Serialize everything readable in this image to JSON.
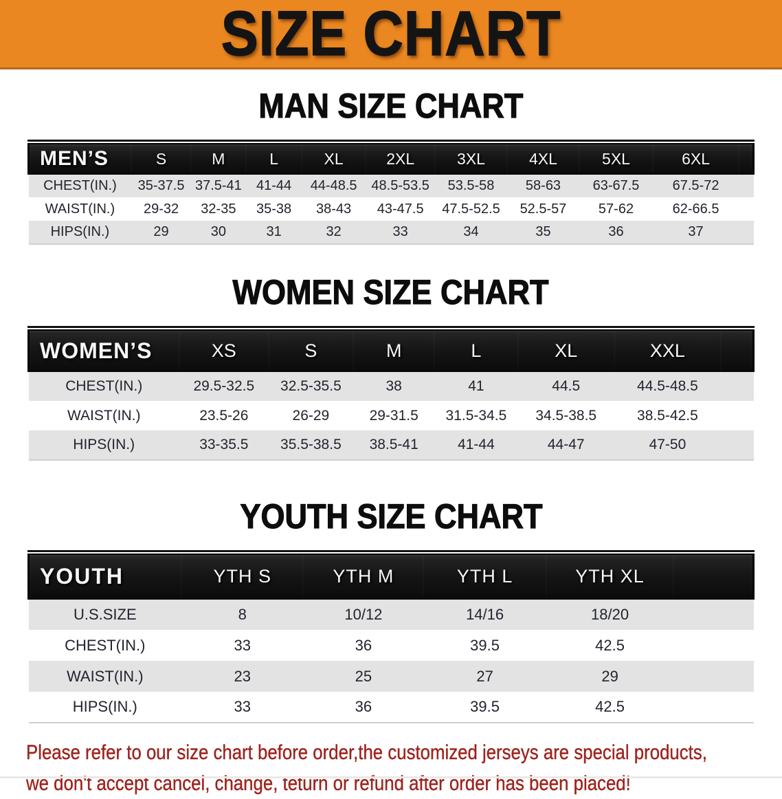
{
  "banner": {
    "title": "SIZE CHART",
    "background_color": "#EA8720",
    "text_color": "#141414"
  },
  "sections": [
    {
      "heading": "MAN SIZE CHART",
      "table": {
        "header": [
          "MEN’S",
          "S",
          "M",
          "L",
          "XL",
          "2XL",
          "3XL",
          "4XL",
          "5XL",
          "6XL"
        ],
        "rows": [
          {
            "label": "CHEST(IN.)",
            "values": [
              "35-37.5",
              "37.5-41",
              "41-44",
              "44-48.5",
              "48.5-53.5",
              "53.5-58",
              "58-63",
              "63-67.5",
              "67.5-72"
            ]
          },
          {
            "label": "WAIST(IN.)",
            "values": [
              "29-32",
              "32-35",
              "35-38",
              "38-43",
              "43-47.5",
              "47.5-52.5",
              "52.5-57",
              "57-62",
              "62-66.5"
            ]
          },
          {
            "label": "HIPS(IN.)",
            "values": [
              "29",
              "30",
              "31",
              "32",
              "33",
              "34",
              "35",
              "36",
              "37"
            ]
          }
        ]
      }
    },
    {
      "heading": "WOMEN SIZE CHART",
      "table": {
        "header": [
          "WOMEN’S",
          "XS",
          "S",
          "M",
          "L",
          "XL",
          "XXL"
        ],
        "rows": [
          {
            "label": "CHEST(IN.)",
            "values": [
              "29.5-32.5",
              "32.5-35.5",
              "38",
              "41",
              "44.5",
              "44.5-48.5"
            ]
          },
          {
            "label": "WAIST(IN.)",
            "values": [
              "23.5-26",
              "26-29",
              "29-31.5",
              "31.5-34.5",
              "34.5-38.5",
              "38.5-42.5"
            ]
          },
          {
            "label": "HIPS(IN.)",
            "values": [
              "33-35.5",
              "35.5-38.5",
              "38.5-41",
              "41-44",
              "44-47",
              "47-50"
            ]
          }
        ]
      }
    },
    {
      "heading": "YOUTH SIZE CHART",
      "table": {
        "header": [
          "YOUTH",
          "YTH S",
          "YTH M",
          "YTH L",
          "YTH XL"
        ],
        "rows": [
          {
            "label": "U.S.SIZE",
            "values": [
              "8",
              "10/12",
              "14/16",
              "18/20"
            ]
          },
          {
            "label": "CHEST(IN.)",
            "values": [
              "33",
              "36",
              "39.5",
              "42.5"
            ]
          },
          {
            "label": "WAIST(IN.)",
            "values": [
              "23",
              "25",
              "27",
              "29"
            ]
          },
          {
            "label": "HIPS(IN.)",
            "values": [
              "33",
              "36",
              "39.5",
              "42.5"
            ]
          }
        ]
      }
    }
  ],
  "disclaimer": {
    "line1": "Please refer to our size chart before order,the customized jerseys are special products,",
    "line2": "we don't accept cancel, change, teturn or refund after order has been placed!",
    "color": "#9E231D"
  },
  "style_tokens": {
    "header_bar_color": "#161616",
    "stripe_row_color": "#E3E3E3"
  }
}
